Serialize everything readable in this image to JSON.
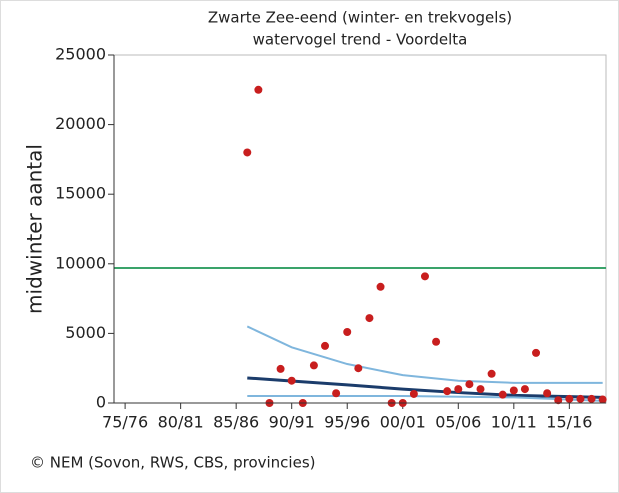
{
  "chart_data": {
    "type": "scatter",
    "title": [
      "Zwarte Zee-eend (winter- en trekvogels)",
      "watervogel trend - Voordelta"
    ],
    "ylabel": "midwinter aantal",
    "footer": "© NEM (Sovon, RWS, CBS, provincies)",
    "x": [
      1986,
      1987,
      1988,
      1989,
      1990,
      1991,
      1992,
      1993,
      1994,
      1995,
      1996,
      1997,
      1998,
      1999,
      2000,
      2001,
      2002,
      2003,
      2004,
      2005,
      2006,
      2007,
      2008,
      2009,
      2010,
      2011,
      2012,
      2013,
      2014,
      2015,
      2016,
      2017,
      2018
    ],
    "values": [
      18000,
      22500,
      0,
      2450,
      1600,
      0,
      2700,
      4100,
      700,
      5100,
      2500,
      6100,
      8350,
      0,
      0,
      650,
      9100,
      4400,
      850,
      1000,
      1350,
      1000,
      2100,
      600,
      900,
      1000,
      3600,
      700,
      200,
      300,
      300,
      300,
      250
    ],
    "color": "#c81e1e",
    "lines": [
      {
        "color": "#3aa36a",
        "x": [
          1974,
          2018.3
        ],
        "values": [
          9700,
          9700
        ]
      },
      {
        "color": "#7fb6dd",
        "x": [
          1986,
          1990,
          1995,
          2000,
          2005,
          2010,
          2018
        ],
        "values": [
          5500,
          4000,
          2800,
          2000,
          1600,
          1450,
          1450
        ]
      },
      {
        "color": "#1b3c6b",
        "x": [
          1986,
          1995,
          2000,
          2005,
          2010,
          2018
        ],
        "values": [
          1800,
          1300,
          1000,
          750,
          550,
          400
        ]
      },
      {
        "color": "#7fb6dd",
        "x": [
          1986,
          2000,
          2010,
          2018
        ],
        "values": [
          500,
          500,
          400,
          150
        ]
      }
    ],
    "xlim": [
      1974,
      2018.3
    ],
    "xticks": [
      {
        "value": 1975,
        "label": "75/76"
      },
      {
        "value": 1980,
        "label": "80/81"
      },
      {
        "value": 1985,
        "label": "85/86"
      },
      {
        "value": 1990,
        "label": "90/91"
      },
      {
        "value": 1995,
        "label": "95/96"
      },
      {
        "value": 2000,
        "label": "00/01"
      },
      {
        "value": 2005,
        "label": "05/06"
      },
      {
        "value": 2010,
        "label": "10/11"
      },
      {
        "value": 2015,
        "label": "15/16"
      }
    ],
    "ylim": [
      0,
      25000
    ],
    "yticks": [
      0,
      5000,
      10000,
      15000,
      20000,
      25000
    ]
  }
}
